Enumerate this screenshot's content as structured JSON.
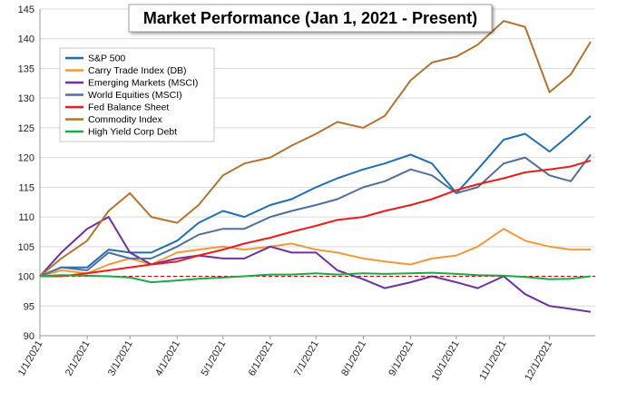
{
  "chart_data": {
    "type": "line",
    "title": "Market Performance (Jan 1, 2021 - Present)",
    "xlabel": "",
    "ylabel": "",
    "ylim": [
      90,
      145
    ],
    "yticks": [
      90,
      95,
      100,
      105,
      110,
      115,
      120,
      125,
      130,
      135,
      140,
      145
    ],
    "xticks": [
      "1/1/2021",
      "2/1/2021",
      "3/1/2021",
      "4/1/2021",
      "5/1/2021",
      "6/1/2021",
      "7/1/2021",
      "8/1/2021",
      "9/1/2021",
      "10/1/2021",
      "11/1/2021",
      "12/1/2021"
    ],
    "x": [
      "1/1/2021",
      "1/15/2021",
      "2/1/2021",
      "2/15/2021",
      "3/1/2021",
      "3/15/2021",
      "4/1/2021",
      "4/15/2021",
      "5/1/2021",
      "5/15/2021",
      "6/1/2021",
      "6/15/2021",
      "7/1/2021",
      "7/15/2021",
      "8/1/2021",
      "8/15/2021",
      "9/1/2021",
      "9/15/2021",
      "10/1/2021",
      "10/15/2021",
      "11/1/2021",
      "11/15/2021",
      "12/1/2021",
      "12/15/2021",
      "12/28/2021"
    ],
    "reference_line": {
      "y": 100,
      "color": "#cc0000",
      "style": "dashed"
    },
    "grid": "horizontal",
    "legend_position": "top-left",
    "series": [
      {
        "name": "S&P 500",
        "color": "#1f6fb5",
        "values": [
          100,
          101.5,
          101.5,
          104.5,
          104,
          104,
          106,
          109,
          111,
          110,
          112,
          113,
          115,
          116.5,
          118,
          119,
          120.5,
          119,
          114,
          118,
          123,
          124,
          121,
          124,
          127
        ]
      },
      {
        "name": "Carry Trade Index (DB)",
        "color": "#f29a3a",
        "values": [
          100,
          101,
          100.5,
          102,
          103,
          102,
          104,
          104.5,
          105,
          104.5,
          105,
          105.5,
          104.5,
          104,
          103,
          102.5,
          102,
          103,
          103.5,
          105,
          108,
          106,
          105,
          104.5,
          104.5
        ]
      },
      {
        "name": "Emerging Markets (MSCI)",
        "color": "#7030a0",
        "values": [
          100,
          104,
          108,
          110,
          104,
          102,
          103,
          103.5,
          103,
          103,
          105,
          104,
          104,
          101,
          99.5,
          98,
          99,
          100,
          99,
          98,
          100,
          97,
          95,
          94.5,
          94
        ]
      },
      {
        "name": "World Equities (MSCI)",
        "color": "#4f6fa0",
        "values": [
          100,
          101.5,
          101,
          104,
          103,
          103,
          105,
          107,
          108,
          108,
          110,
          111,
          112,
          113,
          115,
          116,
          118,
          117,
          114,
          115,
          119,
          120,
          117,
          116,
          120.5
        ]
      },
      {
        "name": "Fed Balance Sheet",
        "color": "#ee1c1c",
        "values": [
          100,
          100,
          100.5,
          101,
          101.5,
          102,
          102.5,
          103.5,
          104.5,
          105.5,
          106.5,
          107.5,
          108.5,
          109.5,
          110,
          111,
          112,
          113,
          114.5,
          115.5,
          116.5,
          117.5,
          118,
          118.5,
          119.5
        ]
      },
      {
        "name": "Commodity Index",
        "color": "#b5742e",
        "values": [
          100,
          103,
          106,
          111,
          114,
          110,
          109,
          112,
          117,
          119,
          120,
          122,
          124,
          126,
          125,
          127,
          133,
          136,
          137,
          139,
          143,
          142,
          131,
          134,
          139.5
        ]
      },
      {
        "name": "High Yield Corp Debt",
        "color": "#1fa84a",
        "values": [
          100,
          100.2,
          100.1,
          100,
          99.8,
          99,
          99.3,
          99.6,
          99.8,
          100,
          100.3,
          100.3,
          100.5,
          100.3,
          100.5,
          100.4,
          100.5,
          100.6,
          100.4,
          100.2,
          100.1,
          99.9,
          99.5,
          99.6,
          100
        ]
      }
    ]
  }
}
